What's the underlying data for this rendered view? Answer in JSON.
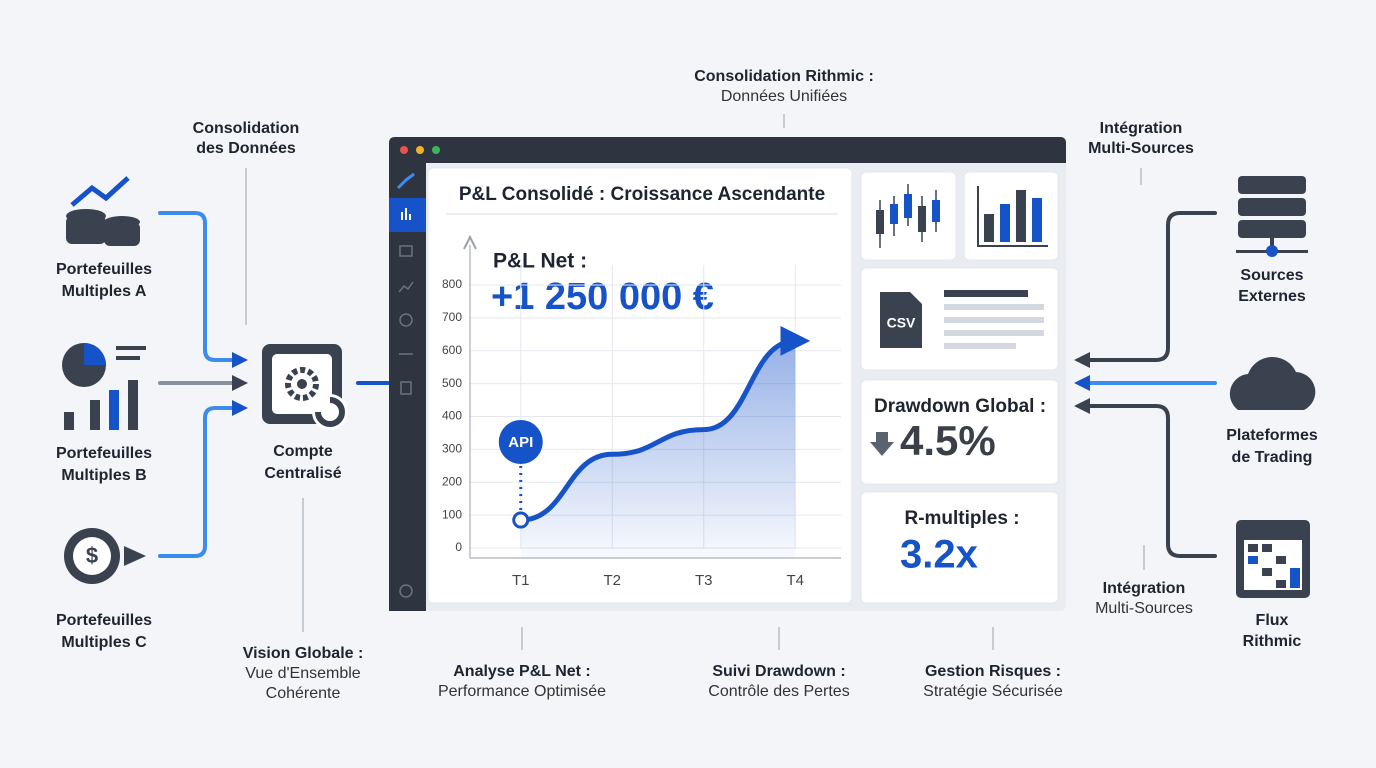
{
  "top_label": {
    "title": "Consolidation Rithmic :",
    "subtitle": "Données Unifiées"
  },
  "left": {
    "consolidation": [
      "Consolidation",
      "des Données"
    ],
    "portfolio_a": [
      "Portefeuilles",
      "Multiples A"
    ],
    "portfolio_b": [
      "Portefeuilles",
      "Multiples B"
    ],
    "portfolio_c": [
      "Portefeuilles",
      "Multiples C"
    ],
    "account": [
      "Compte",
      "Centralisé"
    ],
    "vision": [
      "Vision Globale :",
      "Vue d'Ensemble",
      "Cohérente"
    ]
  },
  "right": {
    "integration_top": [
      "Intégration",
      "Multi-Sources"
    ],
    "sources": [
      "Sources",
      "Externes"
    ],
    "platforms": [
      "Plateformes",
      "de Trading"
    ],
    "integration_bottom": [
      "Intégration",
      "Multi-Sources"
    ],
    "flux": [
      "Flux",
      "Rithmic"
    ]
  },
  "bottom": [
    {
      "title": "Analyse P&L Net :",
      "subtitle": "Performance Optimisée"
    },
    {
      "title": "Suivi Drawdown :",
      "subtitle": "Contrôle des Pertes"
    },
    {
      "title": "Gestion Risques :",
      "subtitle": "Stratégie Sécurisée"
    }
  ],
  "widgets": {
    "csv": "CSV",
    "drawdown": {
      "title": "Drawdown Global :",
      "value": "4.5%"
    },
    "r_multiples": {
      "title": "R-multiples :",
      "value": "3.2x"
    }
  },
  "chart_data": {
    "type": "line",
    "title": "P&L Consolidé : Croissance Ascendante",
    "annotations": [
      "P&L Net :",
      "+1 250 000 €",
      "API"
    ],
    "categories": [
      "T1",
      "T2",
      "T3",
      "T4"
    ],
    "values": [
      85,
      285,
      360,
      630
    ],
    "color": "#1652c8",
    "ylim": [
      0,
      800
    ],
    "yticks": [
      0,
      100,
      200,
      300,
      400,
      500,
      600,
      700,
      800
    ],
    "grid": true
  }
}
